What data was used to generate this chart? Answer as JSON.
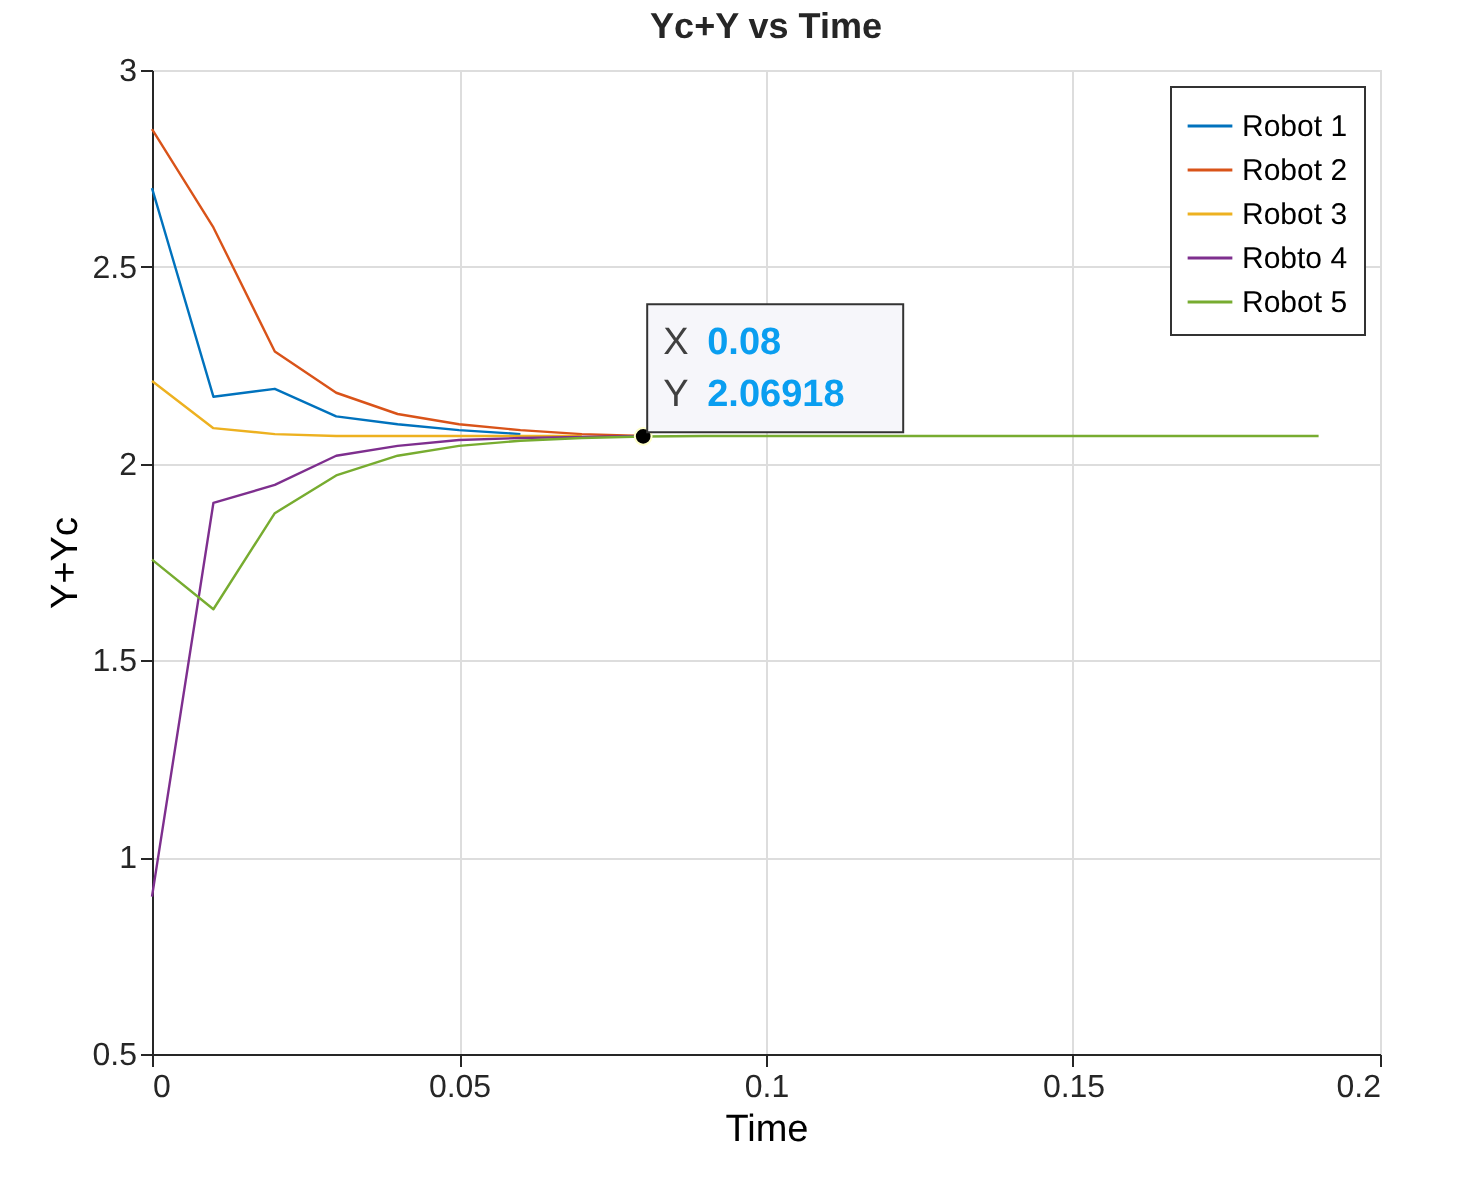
{
  "chart_data": {
    "type": "line",
    "title": "Yc+Y vs Time",
    "xlabel": "Time",
    "ylabel": "Y+Yc",
    "x": [
      0,
      0.01,
      0.02,
      0.03,
      0.04,
      0.05,
      0.06,
      0.07,
      0.08,
      0.09,
      0.1,
      0.11,
      0.12,
      0.13,
      0.14,
      0.15,
      0.16,
      0.17,
      0.18,
      0.19
    ],
    "series": [
      {
        "name": "Robot 1",
        "color": "#0072bd",
        "values": [
          2.7,
          2.17,
          2.19,
          2.12,
          2.1,
          2.085,
          2.075,
          null,
          null,
          null,
          null,
          null,
          null,
          null,
          null,
          null,
          null,
          null,
          null,
          null
        ]
      },
      {
        "name": "Robot 2",
        "color": "#d95319",
        "values": [
          2.85,
          2.6,
          2.285,
          2.18,
          2.126,
          2.1,
          2.085,
          2.075,
          2.07,
          null,
          null,
          null,
          null,
          null,
          null,
          null,
          null,
          null,
          null,
          null
        ]
      },
      {
        "name": "Robot 3",
        "color": "#edb120",
        "values": [
          2.21,
          2.09,
          2.075,
          2.07,
          2.07,
          2.07,
          2.07,
          2.07,
          null,
          null,
          null,
          null,
          null,
          null,
          null,
          null,
          null,
          null,
          null,
          null
        ]
      },
      {
        "name": "Robto 4",
        "color": "#7e2f8e",
        "values": [
          0.9,
          1.9,
          1.946,
          2.02,
          2.045,
          2.06,
          2.065,
          2.068,
          2.07,
          null,
          null,
          null,
          null,
          null,
          null,
          null,
          null,
          null,
          null,
          null
        ]
      },
      {
        "name": "Robot 5",
        "color": "#77ac30",
        "values": [
          1.756,
          1.63,
          1.874,
          1.97,
          2.02,
          2.045,
          2.058,
          2.065,
          2.069,
          2.07,
          2.07,
          2.07,
          2.07,
          2.07,
          2.07,
          2.07,
          2.07,
          2.07,
          2.07,
          2.07
        ]
      }
    ],
    "xlim": [
      0,
      0.2
    ],
    "xticks": [
      0,
      0.05,
      0.1,
      0.15,
      0.2
    ],
    "ylim": [
      0.5,
      3
    ],
    "yticks": [
      0.5,
      1,
      1.5,
      2,
      2.5,
      3
    ],
    "grid": true,
    "legend": "top right",
    "marker": "none",
    "line_style": "solid",
    "annotations": [
      {
        "text": "X 0.08\nY 2.06918",
        "x": 0.08,
        "y": 2.06918
      }
    ]
  }
}
